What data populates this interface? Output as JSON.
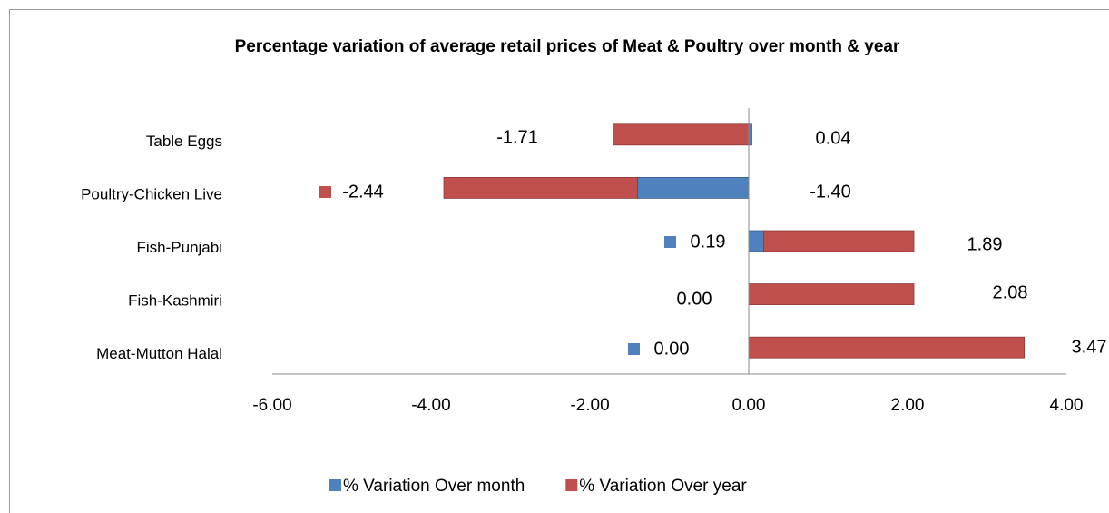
{
  "chart_data": {
    "type": "stacked_barh",
    "title": "Percentage variation  of average retail prices of Meat & Poultry over month & year",
    "categories": [
      "Table Eggs",
      "Poultry-Chicken Live",
      "Fish-Punjabi",
      "Fish-Kashmiri",
      "Meat-Mutton Halal"
    ],
    "series": [
      {
        "name": "% Variation Over month",
        "color": "#4f81bd",
        "values": [
          0.04,
          -1.4,
          0.19,
          0.0,
          0.0
        ],
        "value_labels": [
          "0.04",
          "-1.40",
          "0.19",
          "0.00",
          "0.00"
        ]
      },
      {
        "name": "% Variation Over year",
        "color": "#c0504d",
        "values": [
          -1.71,
          -2.44,
          1.89,
          2.08,
          3.47
        ],
        "value_labels": [
          "-1.71",
          "-2.44",
          "1.89",
          "2.08",
          "3.47"
        ]
      }
    ],
    "xlim": [
      -6,
      4
    ],
    "xticks": [
      {
        "value": -6,
        "label": "-6.00"
      },
      {
        "value": -4,
        "label": "-4.00"
      },
      {
        "value": -2,
        "label": "-2.00"
      },
      {
        "value": 0,
        "label": "0.00"
      },
      {
        "value": 2,
        "label": "2.00"
      },
      {
        "value": 4,
        "label": "4.00"
      }
    ],
    "legend": "bottom"
  }
}
